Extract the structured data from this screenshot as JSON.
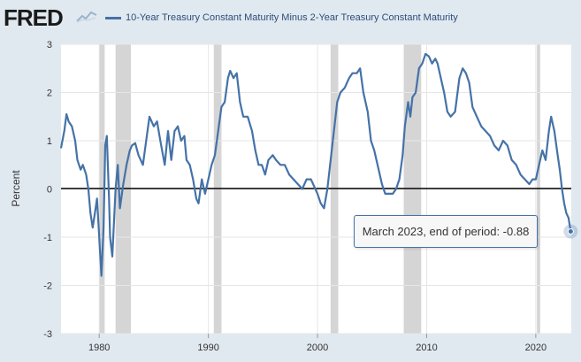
{
  "header": {
    "logo_text": "FRED",
    "legend_label": "10-Year Treasury Constant Maturity Minus 2-Year Treasury Constant Maturity"
  },
  "tooltip": {
    "text": "March 2023, end of period: -0.88"
  },
  "colors": {
    "series": "#4572a7",
    "recession": "#d5d5d5",
    "plot_bg": "#ffffff",
    "page_bg": "#e1e9f0",
    "zero_line": "#000000"
  },
  "icons": {
    "logo_mark": "chart-line-icon"
  },
  "chart_data": {
    "type": "line",
    "title": "",
    "xlabel": "",
    "ylabel": "Percent",
    "xlim": [
      1976.5,
      2023.25
    ],
    "ylim": [
      -3,
      3
    ],
    "yticks": [
      -3,
      -2,
      -1,
      0,
      1,
      2,
      3
    ],
    "xticks": [
      1980,
      1990,
      2000,
      2010,
      2020
    ],
    "grid": "vertical and horizontal",
    "legend_placement": "top",
    "recessions": [
      [
        1980.0,
        1980.5
      ],
      [
        1981.5,
        1982.9
      ],
      [
        1990.5,
        1991.2
      ],
      [
        2001.2,
        2001.9
      ],
      [
        2007.9,
        2009.5
      ],
      [
        2020.1,
        2020.4
      ]
    ],
    "series": [
      {
        "name": "10-Year Treasury Constant Maturity Minus 2-Year Treasury Constant Maturity",
        "x": [
          1976.5,
          1976.8,
          1977.0,
          1977.2,
          1977.5,
          1977.8,
          1978.0,
          1978.3,
          1978.5,
          1978.8,
          1979.0,
          1979.2,
          1979.4,
          1979.6,
          1979.8,
          1979.95,
          1980.05,
          1980.2,
          1980.4,
          1980.55,
          1980.7,
          1980.9,
          1981.0,
          1981.2,
          1981.5,
          1981.7,
          1981.9,
          1982.2,
          1982.5,
          1982.8,
          1983.0,
          1983.3,
          1983.6,
          1984.0,
          1984.3,
          1984.6,
          1985.0,
          1985.3,
          1985.6,
          1986.0,
          1986.3,
          1986.6,
          1986.9,
          1987.2,
          1987.5,
          1987.8,
          1988.0,
          1988.3,
          1988.6,
          1988.9,
          1989.1,
          1989.4,
          1989.7,
          1990.0,
          1990.3,
          1990.6,
          1990.9,
          1991.2,
          1991.5,
          1991.8,
          1992.0,
          1992.3,
          1992.6,
          1992.9,
          1993.2,
          1993.6,
          1994.0,
          1994.3,
          1994.6,
          1994.9,
          1995.2,
          1995.5,
          1995.9,
          1996.2,
          1996.6,
          1997.0,
          1997.4,
          1997.8,
          1998.2,
          1998.6,
          1999.0,
          1999.4,
          1999.8,
          2000.0,
          2000.3,
          2000.6,
          2000.9,
          2001.2,
          2001.5,
          2001.8,
          2002.1,
          2002.5,
          2002.9,
          2003.2,
          2003.6,
          2003.9,
          2004.2,
          2004.6,
          2004.9,
          2005.2,
          2005.6,
          2005.9,
          2006.2,
          2006.5,
          2006.9,
          2007.2,
          2007.5,
          2007.8,
          2008.0,
          2008.3,
          2008.5,
          2008.7,
          2009.0,
          2009.3,
          2009.6,
          2009.9,
          2010.2,
          2010.5,
          2010.8,
          2011.0,
          2011.3,
          2011.6,
          2011.9,
          2012.2,
          2012.6,
          2013.0,
          2013.3,
          2013.6,
          2013.9,
          2014.2,
          2014.6,
          2015.0,
          2015.4,
          2015.8,
          2016.2,
          2016.6,
          2017.0,
          2017.4,
          2017.8,
          2018.2,
          2018.6,
          2019.0,
          2019.4,
          2019.7,
          2020.0,
          2020.3,
          2020.6,
          2020.9,
          2021.2,
          2021.4,
          2021.7,
          2022.0,
          2022.2,
          2022.4,
          2022.6,
          2022.8,
          2023.0,
          2023.2
        ],
        "values": [
          0.85,
          1.2,
          1.55,
          1.4,
          1.3,
          1.0,
          0.6,
          0.4,
          0.5,
          0.3,
          0.0,
          -0.5,
          -0.8,
          -0.5,
          -0.2,
          -0.8,
          -1.2,
          -1.8,
          -0.8,
          0.9,
          1.1,
          -0.2,
          -1.0,
          -1.4,
          0.0,
          0.5,
          -0.4,
          0.1,
          0.5,
          0.8,
          0.9,
          0.95,
          0.7,
          0.5,
          1.0,
          1.5,
          1.3,
          1.4,
          1.0,
          0.5,
          1.2,
          0.6,
          1.2,
          1.3,
          1.0,
          1.1,
          0.6,
          0.5,
          0.2,
          -0.2,
          -0.3,
          0.2,
          -0.1,
          0.2,
          0.5,
          0.7,
          1.2,
          1.7,
          1.8,
          2.3,
          2.45,
          2.3,
          2.4,
          1.8,
          1.5,
          1.5,
          1.2,
          0.8,
          0.5,
          0.5,
          0.3,
          0.6,
          0.7,
          0.6,
          0.5,
          0.5,
          0.3,
          0.2,
          0.1,
          0.0,
          0.2,
          0.2,
          0.0,
          -0.1,
          -0.3,
          -0.4,
          0.0,
          0.6,
          1.2,
          1.8,
          2.0,
          2.1,
          2.3,
          2.4,
          2.4,
          2.5,
          2.0,
          1.6,
          1.0,
          0.8,
          0.4,
          0.1,
          -0.1,
          -0.1,
          -0.1,
          0.0,
          0.2,
          0.7,
          1.3,
          1.8,
          1.5,
          1.9,
          2.0,
          2.5,
          2.6,
          2.8,
          2.75,
          2.6,
          2.7,
          2.6,
          2.3,
          2.0,
          1.6,
          1.5,
          1.6,
          2.3,
          2.5,
          2.4,
          2.2,
          1.7,
          1.5,
          1.3,
          1.2,
          1.1,
          0.9,
          0.8,
          1.0,
          0.9,
          0.6,
          0.5,
          0.3,
          0.2,
          0.1,
          0.2,
          0.2,
          0.5,
          0.8,
          0.6,
          1.2,
          1.5,
          1.2,
          0.7,
          0.4,
          0.0,
          -0.3,
          -0.5,
          -0.6,
          -0.88
        ]
      }
    ]
  }
}
